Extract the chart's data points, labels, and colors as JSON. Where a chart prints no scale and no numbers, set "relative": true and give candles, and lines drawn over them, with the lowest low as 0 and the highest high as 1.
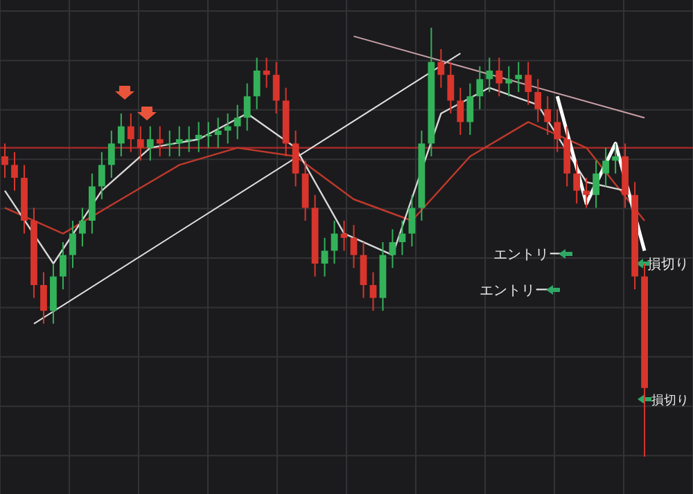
{
  "chart_data": {
    "type": "candlestick",
    "relative": true,
    "grid": true,
    "categories": [
      null,
      null,
      null,
      null,
      null,
      null,
      null,
      null,
      null,
      null,
      null,
      null,
      null,
      null,
      null,
      null,
      null,
      null,
      null,
      null,
      null,
      null,
      null,
      null,
      null,
      null,
      null,
      null,
      null,
      null,
      null,
      null,
      null,
      null,
      null,
      null,
      null,
      null,
      null,
      null,
      null,
      null,
      null,
      null,
      null,
      null,
      null,
      null,
      null,
      null,
      null,
      null,
      null,
      null,
      null,
      null,
      null,
      null,
      null,
      null,
      null,
      null,
      null,
      null,
      null,
      null,
      null
    ],
    "ohlc": [
      [
        0.7,
        0.73,
        0.65,
        0.68
      ],
      [
        0.68,
        0.71,
        0.62,
        0.65
      ],
      [
        0.65,
        0.68,
        0.52,
        0.55
      ],
      [
        0.55,
        0.58,
        0.37,
        0.4
      ],
      [
        0.4,
        0.43,
        0.31,
        0.34
      ],
      [
        0.34,
        0.45,
        0.31,
        0.42
      ],
      [
        0.42,
        0.5,
        0.39,
        0.47
      ],
      [
        0.47,
        0.55,
        0.44,
        0.52
      ],
      [
        0.52,
        0.58,
        0.49,
        0.55
      ],
      [
        0.55,
        0.66,
        0.52,
        0.63
      ],
      [
        0.63,
        0.71,
        0.6,
        0.68
      ],
      [
        0.68,
        0.76,
        0.65,
        0.73
      ],
      [
        0.73,
        0.8,
        0.7,
        0.77
      ],
      [
        0.77,
        0.8,
        0.71,
        0.74
      ],
      [
        0.74,
        0.77,
        0.69,
        0.72
      ],
      [
        0.72,
        0.77,
        0.69,
        0.74
      ],
      [
        0.74,
        0.77,
        0.7,
        0.73
      ],
      [
        0.73,
        0.76,
        0.7,
        0.73
      ],
      [
        0.73,
        0.77,
        0.7,
        0.74
      ],
      [
        0.74,
        0.77,
        0.71,
        0.74
      ],
      [
        0.74,
        0.78,
        0.71,
        0.75
      ],
      [
        0.75,
        0.78,
        0.72,
        0.75
      ],
      [
        0.75,
        0.79,
        0.72,
        0.76
      ],
      [
        0.76,
        0.8,
        0.73,
        0.77
      ],
      [
        0.77,
        0.82,
        0.74,
        0.79
      ],
      [
        0.79,
        0.87,
        0.76,
        0.84
      ],
      [
        0.84,
        0.93,
        0.81,
        0.9
      ],
      [
        0.9,
        0.93,
        0.86,
        0.89
      ],
      [
        0.89,
        0.92,
        0.8,
        0.83
      ],
      [
        0.83,
        0.86,
        0.7,
        0.73
      ],
      [
        0.73,
        0.76,
        0.63,
        0.66
      ],
      [
        0.66,
        0.69,
        0.55,
        0.58
      ],
      [
        0.58,
        0.61,
        0.42,
        0.45
      ],
      [
        0.45,
        0.51,
        0.42,
        0.48
      ],
      [
        0.48,
        0.55,
        0.45,
        0.52
      ],
      [
        0.52,
        0.55,
        0.48,
        0.51
      ],
      [
        0.51,
        0.54,
        0.44,
        0.47
      ],
      [
        0.47,
        0.5,
        0.37,
        0.4
      ],
      [
        0.4,
        0.43,
        0.34,
        0.37
      ],
      [
        0.37,
        0.5,
        0.34,
        0.47
      ],
      [
        0.47,
        0.53,
        0.44,
        0.5
      ],
      [
        0.5,
        0.55,
        0.47,
        0.52
      ],
      [
        0.52,
        0.61,
        0.49,
        0.58
      ],
      [
        0.58,
        0.76,
        0.55,
        0.73
      ],
      [
        0.73,
        1.0,
        0.7,
        0.92
      ],
      [
        0.92,
        0.95,
        0.86,
        0.89
      ],
      [
        0.89,
        0.92,
        0.8,
        0.83
      ],
      [
        0.83,
        0.86,
        0.75,
        0.78
      ],
      [
        0.78,
        0.87,
        0.75,
        0.84
      ],
      [
        0.84,
        0.91,
        0.81,
        0.88
      ],
      [
        0.88,
        0.93,
        0.85,
        0.9
      ],
      [
        0.9,
        0.93,
        0.84,
        0.87
      ],
      [
        0.87,
        0.91,
        0.84,
        0.88
      ],
      [
        0.88,
        0.92,
        0.85,
        0.89
      ],
      [
        0.89,
        0.92,
        0.82,
        0.85
      ],
      [
        0.85,
        0.88,
        0.78,
        0.81
      ],
      [
        0.81,
        0.84,
        0.75,
        0.78
      ],
      [
        0.78,
        0.81,
        0.71,
        0.74
      ],
      [
        0.74,
        0.77,
        0.63,
        0.66
      ],
      [
        0.66,
        0.69,
        0.59,
        0.62
      ],
      [
        0.62,
        0.65,
        0.58,
        0.61
      ],
      [
        0.61,
        0.69,
        0.58,
        0.66
      ],
      [
        0.66,
        0.72,
        0.63,
        0.69
      ],
      [
        0.69,
        0.73,
        0.66,
        0.7
      ],
      [
        0.7,
        0.73,
        0.58,
        0.61
      ],
      [
        0.61,
        0.64,
        0.39,
        0.42
      ],
      [
        0.42,
        0.45,
        0.0,
        0.16
      ]
    ],
    "series": [
      {
        "type": "line",
        "color": "#c0392b",
        "values": [
          0.58,
          null,
          null,
          null,
          null,
          null,
          0.52,
          null,
          null,
          null,
          null,
          null,
          0.6,
          null,
          null,
          null,
          null,
          null,
          0.68,
          null,
          null,
          null,
          null,
          null,
          0.72,
          null,
          null,
          null,
          null,
          null,
          0.7,
          null,
          null,
          null,
          null,
          null,
          0.6,
          null,
          null,
          null,
          null,
          null,
          0.55,
          null,
          null,
          null,
          null,
          null,
          0.7,
          null,
          null,
          null,
          null,
          null,
          0.78,
          null,
          null,
          null,
          null,
          null,
          0.72,
          null,
          null,
          null,
          null,
          null,
          0.55
        ]
      },
      {
        "type": "line",
        "color": "#d8d8d8",
        "values": [
          0.62,
          null,
          null,
          null,
          null,
          0.45,
          null,
          null,
          null,
          null,
          0.62,
          null,
          null,
          null,
          null,
          0.72,
          null,
          null,
          null,
          null,
          0.74,
          null,
          null,
          null,
          null,
          0.8,
          null,
          null,
          null,
          null,
          0.72,
          null,
          null,
          null,
          null,
          0.52,
          null,
          null,
          null,
          null,
          0.47,
          null,
          null,
          null,
          null,
          0.8,
          null,
          null,
          null,
          null,
          0.86,
          null,
          null,
          null,
          null,
          0.82,
          null,
          null,
          null,
          null,
          0.64,
          null,
          null,
          null,
          0.62,
          null,
          null
        ]
      },
      {
        "type": "line",
        "color": "#e0e0e0",
        "values": [
          null,
          null,
          null,
          0.31,
          null,
          null,
          null,
          null,
          null,
          null,
          null,
          null,
          null,
          null,
          null,
          null,
          null,
          null,
          null,
          null,
          null,
          null,
          null,
          null,
          null,
          null,
          null,
          null,
          null,
          null,
          null,
          null,
          null,
          null,
          null,
          null,
          null,
          null,
          null,
          null,
          null,
          null,
          null,
          null,
          null,
          null,
          null,
          0.94,
          null,
          null,
          null,
          null,
          null,
          null,
          null,
          null,
          null,
          null,
          null,
          null,
          null,
          null,
          null,
          null,
          null,
          null,
          null
        ]
      },
      {
        "type": "line",
        "color": "#c9a0a8",
        "values": [
          null,
          null,
          null,
          null,
          null,
          null,
          null,
          null,
          null,
          null,
          null,
          null,
          null,
          null,
          null,
          null,
          null,
          null,
          null,
          null,
          null,
          null,
          null,
          null,
          null,
          null,
          null,
          null,
          null,
          null,
          null,
          null,
          null,
          null,
          null,
          null,
          0.98,
          null,
          null,
          null,
          null,
          null,
          null,
          null,
          null,
          null,
          null,
          null,
          null,
          null,
          null,
          null,
          null,
          null,
          null,
          null,
          null,
          null,
          null,
          null,
          null,
          null,
          null,
          null,
          null,
          null,
          0.79
        ]
      },
      {
        "type": "line",
        "color": "#ffffff",
        "values": [
          null,
          null,
          null,
          null,
          null,
          null,
          null,
          null,
          null,
          null,
          null,
          null,
          null,
          null,
          null,
          null,
          null,
          null,
          null,
          null,
          null,
          null,
          null,
          null,
          null,
          null,
          null,
          null,
          null,
          null,
          null,
          null,
          null,
          null,
          null,
          null,
          null,
          null,
          null,
          null,
          null,
          null,
          null,
          null,
          null,
          null,
          null,
          null,
          null,
          null,
          null,
          null,
          null,
          null,
          null,
          null,
          null,
          0.84,
          null,
          null,
          0.59,
          null,
          null,
          0.73,
          null,
          null,
          0.48
        ]
      }
    ],
    "ref_lines": [
      {
        "axis": "y",
        "value": 0.72,
        "color": "#b02a2a"
      }
    ],
    "annotations": [
      "エントリー",
      "エントリー",
      "損切り",
      "損切り"
    ]
  }
}
